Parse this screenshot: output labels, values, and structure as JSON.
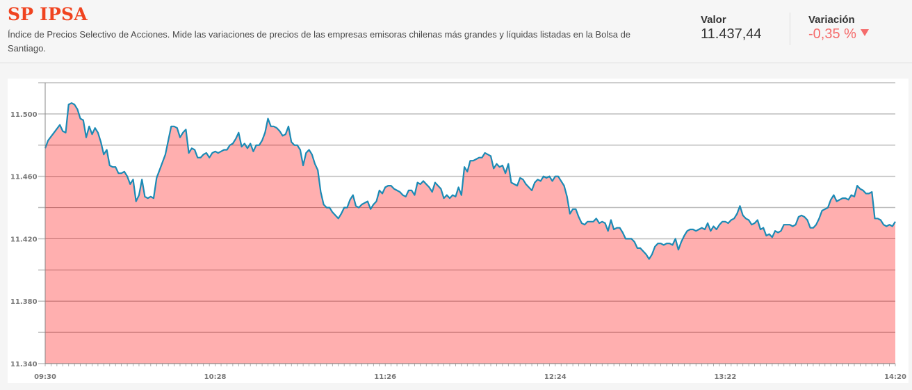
{
  "header": {
    "title": "SP IPSA",
    "description": "Índice de Precios Selectivo de Acciones. Mide las variaciones de precios de las empresas emisoras chilenas más grandes y líquidas listadas en la Bolsa de Santiago.",
    "valor_label": "Valor",
    "valor_value": "11.437,44",
    "variacion_label": "Variación",
    "variacion_value": "-0,35 %",
    "variacion_icon": "triangle-down-icon",
    "variacion_color": "#f56b6b",
    "title_color": "#f0431f"
  },
  "chart_data": {
    "type": "area",
    "title": "SP IPSA",
    "xlabel": "",
    "ylabel": "",
    "x_ticks": [
      "09:30",
      "10:28",
      "11:26",
      "12:24",
      "13:22",
      "14:20"
    ],
    "y_ticks": [
      "11.340",
      "11.380",
      "11.420",
      "11.460",
      "11.500"
    ],
    "ylim": [
      11340,
      11520
    ],
    "y_gridlines": [
      11340,
      11360,
      11380,
      11400,
      11420,
      11440,
      11460,
      11480,
      11500,
      11520
    ],
    "x_range_minutes": [
      0,
      290
    ],
    "grid": true,
    "legend": null,
    "line_color": "#1a8ab5",
    "fill_color": "#ffafaf",
    "series": [
      {
        "name": "SP IPSA",
        "x_minutes": [
          0,
          1,
          3,
          5,
          6,
          7,
          8,
          9,
          10,
          11,
          12,
          13,
          14,
          15,
          16,
          17,
          18,
          19,
          20,
          21,
          22,
          23,
          24,
          25,
          26,
          27,
          28,
          29,
          30,
          31,
          32,
          33,
          34,
          35,
          36,
          37,
          38,
          39,
          40,
          41,
          42,
          43,
          44,
          45,
          46,
          47,
          48,
          49,
          50,
          51,
          52,
          53,
          54,
          55,
          56,
          57,
          58,
          59,
          60,
          61,
          62,
          63,
          64,
          65,
          66,
          67,
          68,
          69,
          70,
          71,
          72,
          73,
          74,
          75,
          76,
          77,
          78,
          79,
          80,
          81,
          82,
          83,
          84,
          85,
          86,
          87,
          88,
          89,
          90,
          91,
          92,
          93,
          94,
          95,
          96,
          97,
          98,
          99,
          100,
          101,
          102,
          103,
          104,
          105,
          106,
          107,
          108,
          109,
          110,
          111,
          112,
          113,
          114,
          115,
          116,
          117,
          118,
          119,
          120,
          121,
          122,
          123,
          124,
          125,
          126,
          127,
          128,
          129,
          130,
          131,
          132,
          133,
          134,
          135,
          136,
          137,
          138,
          139,
          140,
          141,
          142,
          143,
          144,
          145,
          146,
          147,
          148,
          149,
          150,
          151,
          152,
          153,
          154,
          155,
          156,
          157,
          158,
          159,
          160,
          161,
          162,
          163,
          164,
          165,
          166,
          167,
          168,
          169,
          170,
          171,
          172,
          173,
          174,
          175,
          176,
          177,
          178,
          179,
          180,
          181,
          182,
          183,
          184,
          185,
          186,
          187,
          188,
          189,
          190,
          191,
          192,
          193,
          194,
          195,
          196,
          197,
          198,
          199,
          200,
          201,
          202,
          203,
          204,
          205,
          206,
          207,
          208,
          209,
          210,
          211,
          212,
          213,
          214,
          215,
          216,
          217,
          218,
          219,
          220,
          221,
          222,
          223,
          224,
          225,
          226,
          227,
          228,
          229,
          230,
          231,
          232,
          233,
          234,
          235,
          236,
          237,
          238,
          239,
          240,
          241,
          242,
          243,
          244,
          245,
          246,
          247,
          248,
          249,
          250,
          251,
          252,
          253,
          254,
          255,
          256,
          257,
          258,
          259,
          260,
          261,
          262,
          263,
          264,
          265,
          266,
          267,
          268,
          269,
          270,
          271,
          272,
          273,
          274,
          275,
          276,
          277,
          278,
          279,
          280,
          281,
          282,
          283,
          284,
          285,
          286,
          287,
          288,
          289,
          290
        ],
        "values": [
          11478,
          11483,
          11488,
          11493,
          11489,
          11488,
          11506,
          11507,
          11506,
          11503,
          11497,
          11496,
          11485,
          11492,
          11487,
          11491,
          11488,
          11482,
          11474,
          11477,
          11467,
          11466,
          11466,
          11462,
          11462,
          11463,
          11460,
          11455,
          11458,
          11444,
          11448,
          11458,
          11447,
          11446,
          11447,
          11446,
          11459,
          11464,
          11469,
          11474,
          11483,
          11492,
          11492,
          11491,
          11485,
          11488,
          11490,
          11475,
          11478,
          11477,
          11472,
          11472,
          11474,
          11475,
          11472,
          11475,
          11476,
          11475,
          11476,
          11477,
          11477,
          11480,
          11481,
          11484,
          11488,
          11479,
          11481,
          11478,
          11481,
          11476,
          11480,
          11480,
          11483,
          11488,
          11497,
          11492,
          11492,
          11491,
          11489,
          11486,
          11487,
          11492,
          11482,
          11480,
          11480,
          11477,
          11467,
          11475,
          11477,
          11474,
          11468,
          11464,
          11450,
          11442,
          11440,
          11440,
          11437,
          11435,
          11433,
          11436,
          11440,
          11440,
          11445,
          11448,
          11441,
          11440,
          11442,
          11443,
          11444,
          11439,
          11442,
          11444,
          11451,
          11449,
          11453,
          11454,
          11454,
          11452,
          11451,
          11450,
          11448,
          11447,
          11451,
          11451,
          11448,
          11456,
          11455,
          11457,
          11455,
          11453,
          11450,
          11456,
          11454,
          11452,
          11446,
          11448,
          11446,
          11448,
          11447,
          11453,
          11448,
          11466,
          11463,
          11470,
          11470,
          11471,
          11472,
          11472,
          11475,
          11474,
          11473,
          11465,
          11468,
          11466,
          11467,
          11462,
          11468,
          11456,
          11455,
          11454,
          11459,
          11458,
          11455,
          11453,
          11451,
          11456,
          11458,
          11457,
          11460,
          11459,
          11460,
          11457,
          11460,
          11460,
          11457,
          11454,
          11447,
          11436,
          11439,
          11439,
          11434,
          11430,
          11429,
          11431,
          11431,
          11431,
          11433,
          11430,
          11431,
          11430,
          11425,
          11432,
          11426,
          11427,
          11427,
          11424,
          11420,
          11420,
          11420,
          11418,
          11414,
          11414,
          11412,
          11410,
          11407,
          11410,
          11415,
          11417,
          11417,
          11416,
          11417,
          11417,
          11416,
          11420,
          11413,
          11418,
          11422,
          11425,
          11426,
          11426,
          11425,
          11426,
          11427,
          11426,
          11430,
          11425,
          11428,
          11426,
          11429,
          11431,
          11431,
          11430,
          11432,
          11433,
          11436,
          11441,
          11435,
          11433,
          11432,
          11429,
          11430,
          11432,
          11426,
          11427,
          11422,
          11423,
          11421,
          11425,
          11424,
          11425,
          11429,
          11429,
          11429,
          11428,
          11429,
          11434,
          11435,
          11434,
          11432,
          11427,
          11427,
          11429,
          11433,
          11438,
          11439,
          11440,
          11445,
          11448,
          11444,
          11445,
          11446,
          11446,
          11445,
          11448,
          11447,
          11454,
          11452,
          11451,
          11449,
          11449,
          11450,
          11433,
          11433,
          11432,
          11429,
          11428,
          11429,
          11428,
          11431,
          11434,
          11440,
          11440,
          11440,
          11429,
          11428,
          11428,
          11427,
          11427,
          11429
        ]
      }
    ]
  }
}
